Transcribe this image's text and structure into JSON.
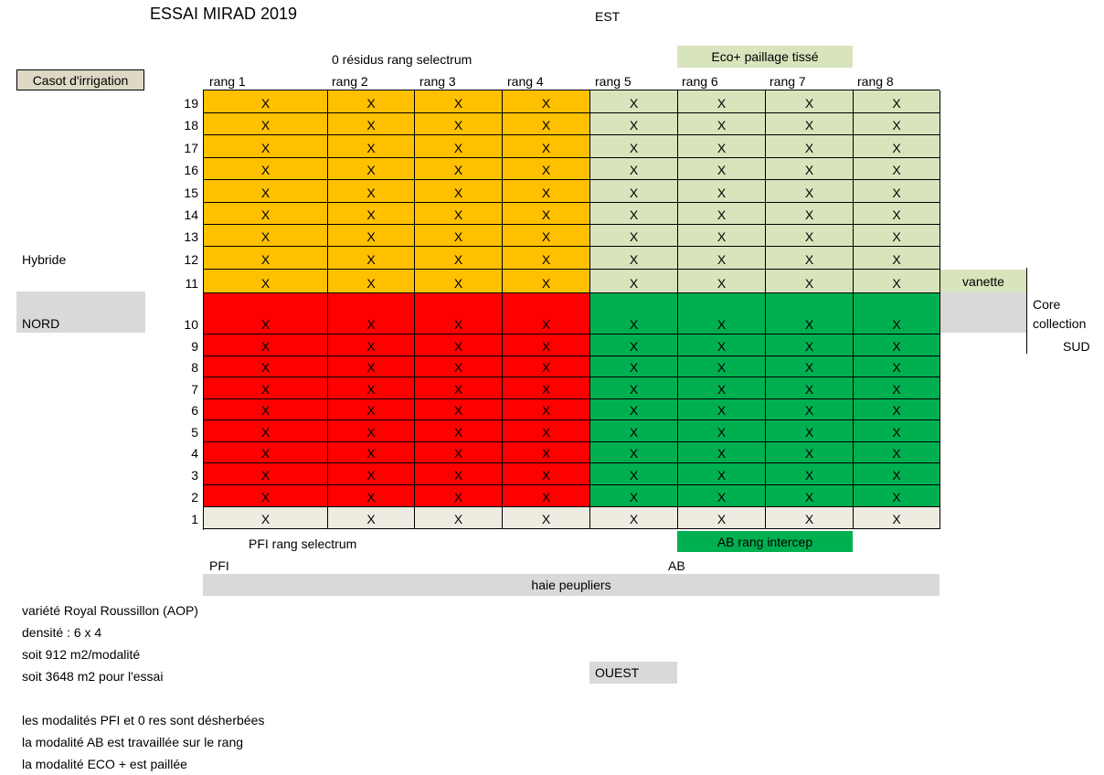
{
  "title": "ESSAI MIRAD 2019",
  "compass": {
    "east": "EST",
    "west": "OUEST",
    "north": "NORD",
    "south": "SUD"
  },
  "casot_label": "Casot d'irrigation",
  "hybride_label": "Hybride",
  "vanette_label": "vanette",
  "core_collection": {
    "line1": "Core",
    "line2": "collection"
  },
  "top_group_left": "0 résidus  rang selectrum",
  "top_group_right": "Eco+ paillage tissé",
  "bottom_group_left": "PFI rang selectrum",
  "bottom_group_right": "AB rang intercep",
  "bottom_pfi": "PFI",
  "bottom_ab": "AB",
  "hedge": "haie peupliers",
  "columns": [
    "rang 1",
    "rang 2",
    "rang 3",
    "rang 4",
    "rang 5",
    "rang 6",
    "rang 7",
    "rang 8"
  ],
  "rows": [
    "19",
    "18",
    "17",
    "16",
    "15",
    "14",
    "13",
    "12",
    "11",
    "10",
    "9",
    "8",
    "7",
    "6",
    "5",
    "4",
    "3",
    "2",
    "1"
  ],
  "cell_mark": "X",
  "zone_colors": {
    "zero_residus": "#ffc000",
    "eco_plus": "#d8e4bc",
    "pfi": "#ff0000",
    "ab": "#00b050",
    "row1": "#eeece1",
    "grey": "#d9d9d9",
    "casot": "#ddd9c4"
  },
  "notes": [
    "variété Royal Roussillon (AOP)",
    "densité : 6 x 4",
    "soit 912 m2/modalité",
    "soit 3648 m2 pour l'essai",
    "",
    "les modalités PFI et 0 res sont désherbées",
    "la modalité AB est travaillée sur le rang",
    "la modalité ECO + est paillée"
  ]
}
